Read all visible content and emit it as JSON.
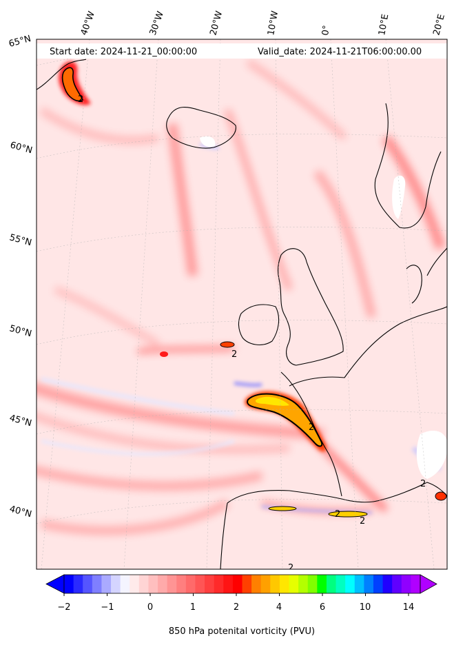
{
  "header": {
    "start_date": "Start date: 2024-11-21_00:00:00",
    "valid_date": "Valid_date: 2024-11-21T06:00:00.00"
  },
  "map": {
    "projection": "conic",
    "longitude_labels": [
      "40°W",
      "30°W",
      "20°W",
      "10°W",
      "0°",
      "10°E",
      "20°E"
    ],
    "latitude_labels": [
      "65°N",
      "60°N",
      "55°N",
      "50°N",
      "45°N",
      "40°N"
    ],
    "contour_label": "2",
    "variable": "potential vorticity at 850 hPa",
    "land_outline": "coastlines",
    "colors": {
      "negative": "#5555ff",
      "zero": "#ffffff",
      "low_positive": "#ffd6d6",
      "high_positive": "#ff0000",
      "extreme": "#ffcc00"
    }
  },
  "colorbar": {
    "label": "850 hPa potenital vorticity (PVU)",
    "tick_labels": [
      "−2",
      "−1",
      "0",
      "1",
      "2",
      "4",
      "6",
      "10",
      "14"
    ],
    "colors": [
      "#0000ff",
      "#2a2aff",
      "#5555ff",
      "#7f7fff",
      "#aaaaff",
      "#d4d4ff",
      "#f4f4ff",
      "#ffeaea",
      "#ffd4d4",
      "#ffbfbf",
      "#ffaaaa",
      "#ff9494",
      "#ff7f7f",
      "#ff6a6a",
      "#ff5555",
      "#ff3f3f",
      "#ff2a2a",
      "#ff1414",
      "#ff0000",
      "#ff4000",
      "#ff8000",
      "#ffa000",
      "#ffc800",
      "#ffe600",
      "#e6ff00",
      "#b4ff00",
      "#80ff00",
      "#00ff00",
      "#00ff80",
      "#00ffc0",
      "#00ffff",
      "#00c0ff",
      "#0080ff",
      "#0040ff",
      "#2000ff",
      "#6000ff",
      "#9000ff",
      "#b000ff"
    ]
  }
}
